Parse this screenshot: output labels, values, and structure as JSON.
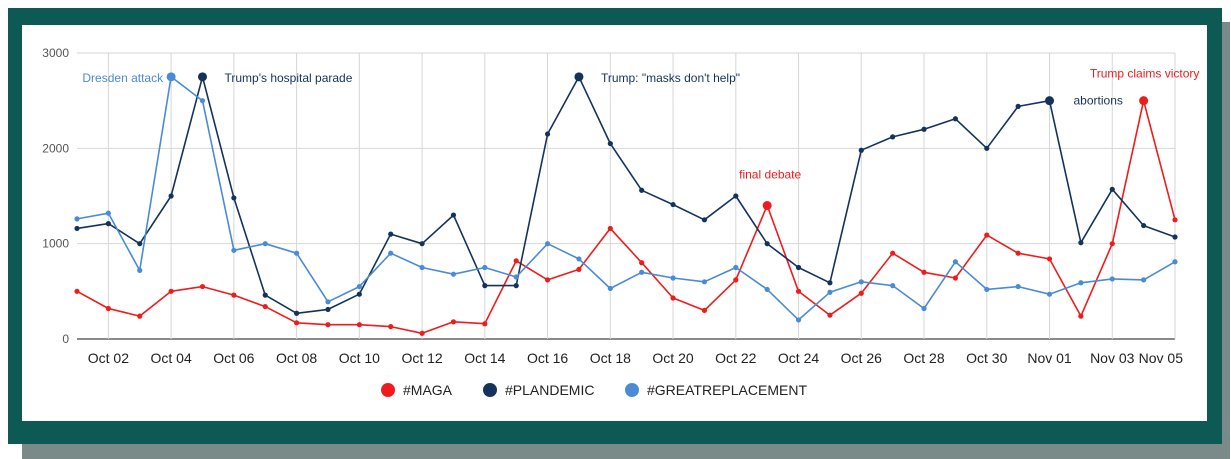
{
  "chart_data": {
    "type": "line",
    "categories": [
      "Oct 01",
      "Oct 02",
      "Oct 03",
      "Oct 04",
      "Oct 05",
      "Oct 06",
      "Oct 07",
      "Oct 08",
      "Oct 09",
      "Oct 10",
      "Oct 11",
      "Oct 12",
      "Oct 13",
      "Oct 14",
      "Oct 15",
      "Oct 16",
      "Oct 17",
      "Oct 18",
      "Oct 19",
      "Oct 20",
      "Oct 21",
      "Oct 22",
      "Oct 23",
      "Oct 24",
      "Oct 25",
      "Oct 26",
      "Oct 27",
      "Oct 28",
      "Oct 29",
      "Oct 30",
      "Oct 31",
      "Nov 01",
      "Nov 02",
      "Nov 03",
      "Nov 04",
      "Nov 05"
    ],
    "tick_labels": [
      "Oct 02",
      "Oct 04",
      "Oct 06",
      "Oct 08",
      "Oct 10",
      "Oct 12",
      "Oct 14",
      "Oct 16",
      "Oct 18",
      "Oct 20",
      "Oct 22",
      "Oct 24",
      "Oct 26",
      "Oct 28",
      "Oct 30",
      "Nov 01",
      "Nov 03",
      "Nov 05"
    ],
    "ylim": [
      0,
      3000
    ],
    "yticks": [
      0,
      1000,
      2000,
      3000
    ],
    "grid": true,
    "legend_position": "bottom",
    "series": [
      {
        "name": "#MAGA",
        "color": "#ee1c1c",
        "values": [
          500,
          320,
          240,
          500,
          550,
          460,
          340,
          170,
          150,
          150,
          130,
          60,
          180,
          160,
          820,
          620,
          730,
          1160,
          800,
          430,
          300,
          620,
          1400,
          500,
          250,
          480,
          900,
          700,
          640,
          1090,
          900,
          840,
          240,
          1000,
          2500,
          1250
        ]
      },
      {
        "name": "#PLANDEMIC",
        "color": "#14335c",
        "values": [
          1160,
          1210,
          1000,
          1500,
          2750,
          1480,
          460,
          270,
          310,
          470,
          1100,
          1000,
          1300,
          560,
          560,
          2150,
          2750,
          2050,
          1560,
          1410,
          1250,
          1500,
          1000,
          750,
          590,
          1980,
          2120,
          2200,
          2310,
          2000,
          2440,
          2500,
          1010,
          1570,
          1190,
          1070
        ]
      },
      {
        "name": "#GREATREPLACEMENT",
        "color": "#4a8bd6",
        "values": [
          1260,
          1320,
          720,
          2750,
          2500,
          930,
          1000,
          900,
          390,
          550,
          900,
          750,
          680,
          750,
          650,
          1000,
          840,
          530,
          700,
          640,
          600,
          750,
          520,
          200,
          490,
          600,
          560,
          320,
          810,
          520,
          550,
          470,
          590,
          630,
          620,
          810
        ]
      }
    ],
    "annotations": [
      {
        "text": "Dresden attack",
        "series": 2,
        "index": 3
      },
      {
        "text": "Trump's hospital parade",
        "series": 1,
        "index": 4
      },
      {
        "text": "Trump: \"masks don't help\"",
        "series": 1,
        "index": 16
      },
      {
        "text": "final debate",
        "series": 0,
        "index": 22
      },
      {
        "text": "abortions",
        "series": 1,
        "index": 31
      },
      {
        "text": "Trump claims victory",
        "series": 0,
        "index": 34
      }
    ]
  }
}
